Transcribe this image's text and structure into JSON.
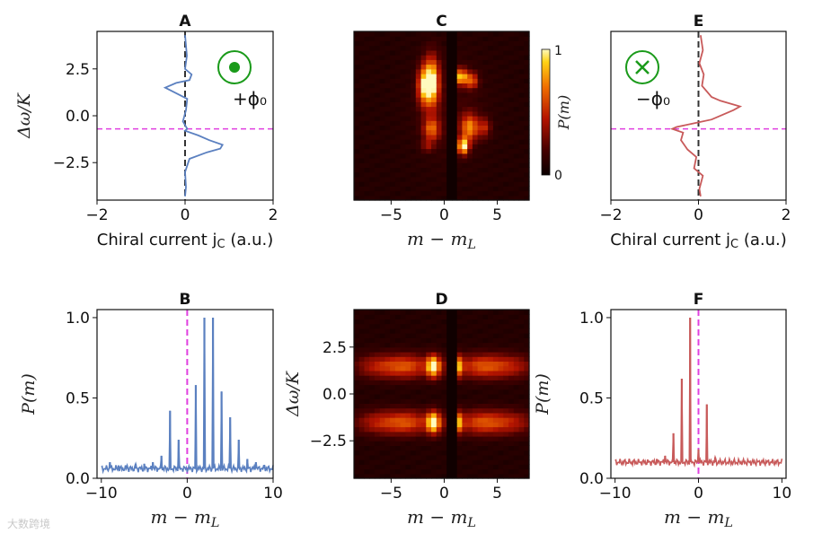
{
  "watermark": "大数跨境",
  "chart_data": [
    {
      "panel": "A",
      "type": "line",
      "title": "A",
      "xlabel": "Chiral current j_C (a.u.)",
      "ylabel": "Δω/K",
      "xlim": [
        -2,
        2
      ],
      "ylim": [
        -4.5,
        4.5
      ],
      "xticks": [
        "−2",
        "0",
        "2"
      ],
      "yticks": [
        "2.5",
        "0.0",
        "−2.5"
      ],
      "series": [
        {
          "color": "#5b80c0",
          "x": [
            0.0,
            0.04,
            0.0,
            0.15,
            0.1,
            -0.2,
            -0.45,
            -0.2,
            0.05,
            0.02,
            -0.05,
            0.05,
            0.0,
            0.3,
            0.55,
            0.85,
            0.8,
            0.5,
            0.1,
            0.0,
            0.02,
            0.0
          ],
          "y": [
            4.3,
            3.2,
            2.5,
            2.2,
            1.9,
            1.75,
            1.5,
            1.2,
            0.9,
            0.3,
            -0.3,
            -0.7,
            -0.8,
            -1.05,
            -1.3,
            -1.55,
            -1.75,
            -1.95,
            -2.3,
            -3.0,
            -3.8,
            -4.3
          ]
        }
      ],
      "hline": {
        "y": -0.7,
        "color": "#e040e0"
      },
      "vline": {
        "x": 0,
        "color": "#333333"
      },
      "annotation": "+ϕ₀",
      "symbol": "out-of-page"
    },
    {
      "panel": "B",
      "type": "line",
      "title": "B",
      "xlabel": "m − m_L",
      "ylabel": "P(m)",
      "xlim": [
        -10.5,
        10
      ],
      "ylim": [
        0,
        1.05
      ],
      "xticks": [
        "−10",
        "0",
        "10"
      ],
      "yticks": [
        "0.0",
        "0.5",
        "1.0"
      ],
      "series": [
        {
          "color": "#5b80c0",
          "baseline": 0.06,
          "peaks": [
            [
              -9,
              0.1
            ],
            [
              -8,
              0.08
            ],
            [
              -7,
              0.08
            ],
            [
              -6,
              0.09
            ],
            [
              -5,
              0.09
            ],
            [
              -4,
              0.1
            ],
            [
              -3,
              0.14
            ],
            [
              -2,
              0.42
            ],
            [
              -1,
              0.24
            ],
            [
              1,
              0.58
            ],
            [
              2,
              1.0
            ],
            [
              3,
              1.0
            ],
            [
              4,
              0.54
            ],
            [
              5,
              0.38
            ],
            [
              6,
              0.24
            ],
            [
              7,
              0.12
            ],
            [
              8,
              0.1
            ],
            [
              9,
              0.08
            ]
          ]
        }
      ],
      "vline": {
        "x": 0,
        "color": "#e040e0"
      }
    },
    {
      "panel": "C",
      "type": "heatmap",
      "title": "C",
      "xlabel": "m − m_L",
      "xlim": [
        -8.5,
        8
      ],
      "ylim": [
        -4.5,
        4.5
      ],
      "xticks": [
        "−5",
        "0",
        "5"
      ],
      "colorbar": {
        "label": "P(m)",
        "min": "0",
        "max": "1"
      },
      "blobs": [
        [
          -1.2,
          1.8,
          1.0,
          1.8,
          1.0
        ],
        [
          -2.0,
          1.6,
          0.8,
          1.4,
          0.6
        ],
        [
          1.6,
          2.1,
          0.8,
          0.6,
          0.8
        ],
        [
          2.6,
          1.9,
          0.8,
          0.6,
          0.55
        ],
        [
          -1.2,
          -0.7,
          1.1,
          0.9,
          0.55
        ],
        [
          1.8,
          -1.6,
          0.7,
          0.6,
          0.95
        ],
        [
          2.4,
          -0.6,
          1.2,
          1.0,
          0.65
        ],
        [
          3.8,
          -0.6,
          0.8,
          0.7,
          0.35
        ],
        [
          -1.6,
          -1.6,
          0.8,
          0.4,
          0.25
        ],
        [
          0.5,
          0.4,
          5.0,
          4.0,
          0.08
        ]
      ]
    },
    {
      "panel": "D",
      "type": "heatmap",
      "title": "D",
      "xlabel": "m − m_L",
      "ylabel": "Δω/K",
      "xlim": [
        -8.5,
        8
      ],
      "ylim": [
        -4.5,
        4.5
      ],
      "xticks": [
        "−5",
        "0",
        "5"
      ],
      "yticks": [
        "2.5",
        "0.0",
        "−2.5"
      ],
      "blobs": [
        [
          -1.0,
          1.5,
          0.9,
          0.8,
          0.95
        ],
        [
          1.0,
          1.5,
          0.9,
          0.8,
          0.95
        ],
        [
          -1.0,
          -1.5,
          0.9,
          0.8,
          0.95
        ],
        [
          1.0,
          -1.5,
          0.9,
          0.8,
          0.95
        ],
        [
          -3.5,
          1.5,
          3.2,
          0.9,
          0.5
        ],
        [
          3.5,
          1.5,
          3.2,
          0.9,
          0.5
        ],
        [
          -3.5,
          -1.5,
          3.2,
          0.9,
          0.5
        ],
        [
          3.5,
          -1.5,
          3.2,
          0.9,
          0.5
        ],
        [
          -6.5,
          1.5,
          3.0,
          0.9,
          0.3
        ],
        [
          6.5,
          1.5,
          3.0,
          0.9,
          0.3
        ],
        [
          -6.5,
          -1.5,
          3.0,
          0.9,
          0.3
        ],
        [
          6.5,
          -1.5,
          3.0,
          0.9,
          0.3
        ]
      ]
    },
    {
      "panel": "E",
      "type": "line",
      "title": "E",
      "xlabel": "Chiral current j_C (a.u.)",
      "xlim": [
        -2,
        2
      ],
      "ylim": [
        -4.5,
        4.5
      ],
      "xticks": [
        "−2",
        "0",
        "2"
      ],
      "series": [
        {
          "color": "#c85a5a",
          "x": [
            0.05,
            0.1,
            0.02,
            0.12,
            0.08,
            0.3,
            0.5,
            0.95,
            0.8,
            0.3,
            -0.1,
            -0.5,
            -0.6,
            -0.35,
            -0.4,
            -0.25,
            -0.05,
            -0.1,
            0.1,
            0.02,
            0.05
          ],
          "y": [
            4.3,
            3.5,
            2.8,
            2.2,
            1.6,
            1.0,
            0.8,
            0.5,
            0.3,
            -0.2,
            -0.4,
            -0.6,
            -0.7,
            -0.9,
            -1.3,
            -1.8,
            -2.2,
            -2.8,
            -3.2,
            -3.9,
            -4.3
          ]
        }
      ],
      "hline": {
        "y": -0.7,
        "color": "#e040e0"
      },
      "vline": {
        "x": 0,
        "color": "#333333"
      },
      "annotation": "−ϕ₀",
      "symbol": "into-page"
    },
    {
      "panel": "F",
      "type": "line",
      "title": "F",
      "xlabel": "m − m_L",
      "ylabel": "P(m)",
      "xlim": [
        -10.5,
        10.5
      ],
      "ylim": [
        0,
        1.05
      ],
      "xticks": [
        "−10",
        "0",
        "10"
      ],
      "yticks": [
        "0.0",
        "0.5",
        "1.0"
      ],
      "series": [
        {
          "color": "#c85a5a",
          "baseline": 0.1,
          "peaks": [
            [
              -5,
              0.12
            ],
            [
              -4,
              0.14
            ],
            [
              -3,
              0.28
            ],
            [
              -2,
              0.62
            ],
            [
              -1,
              1.0
            ],
            [
              0,
              0.18
            ],
            [
              1,
              0.46
            ],
            [
              2,
              0.13
            ]
          ]
        }
      ],
      "vline": {
        "x": 0,
        "color": "#e040e0"
      }
    }
  ]
}
